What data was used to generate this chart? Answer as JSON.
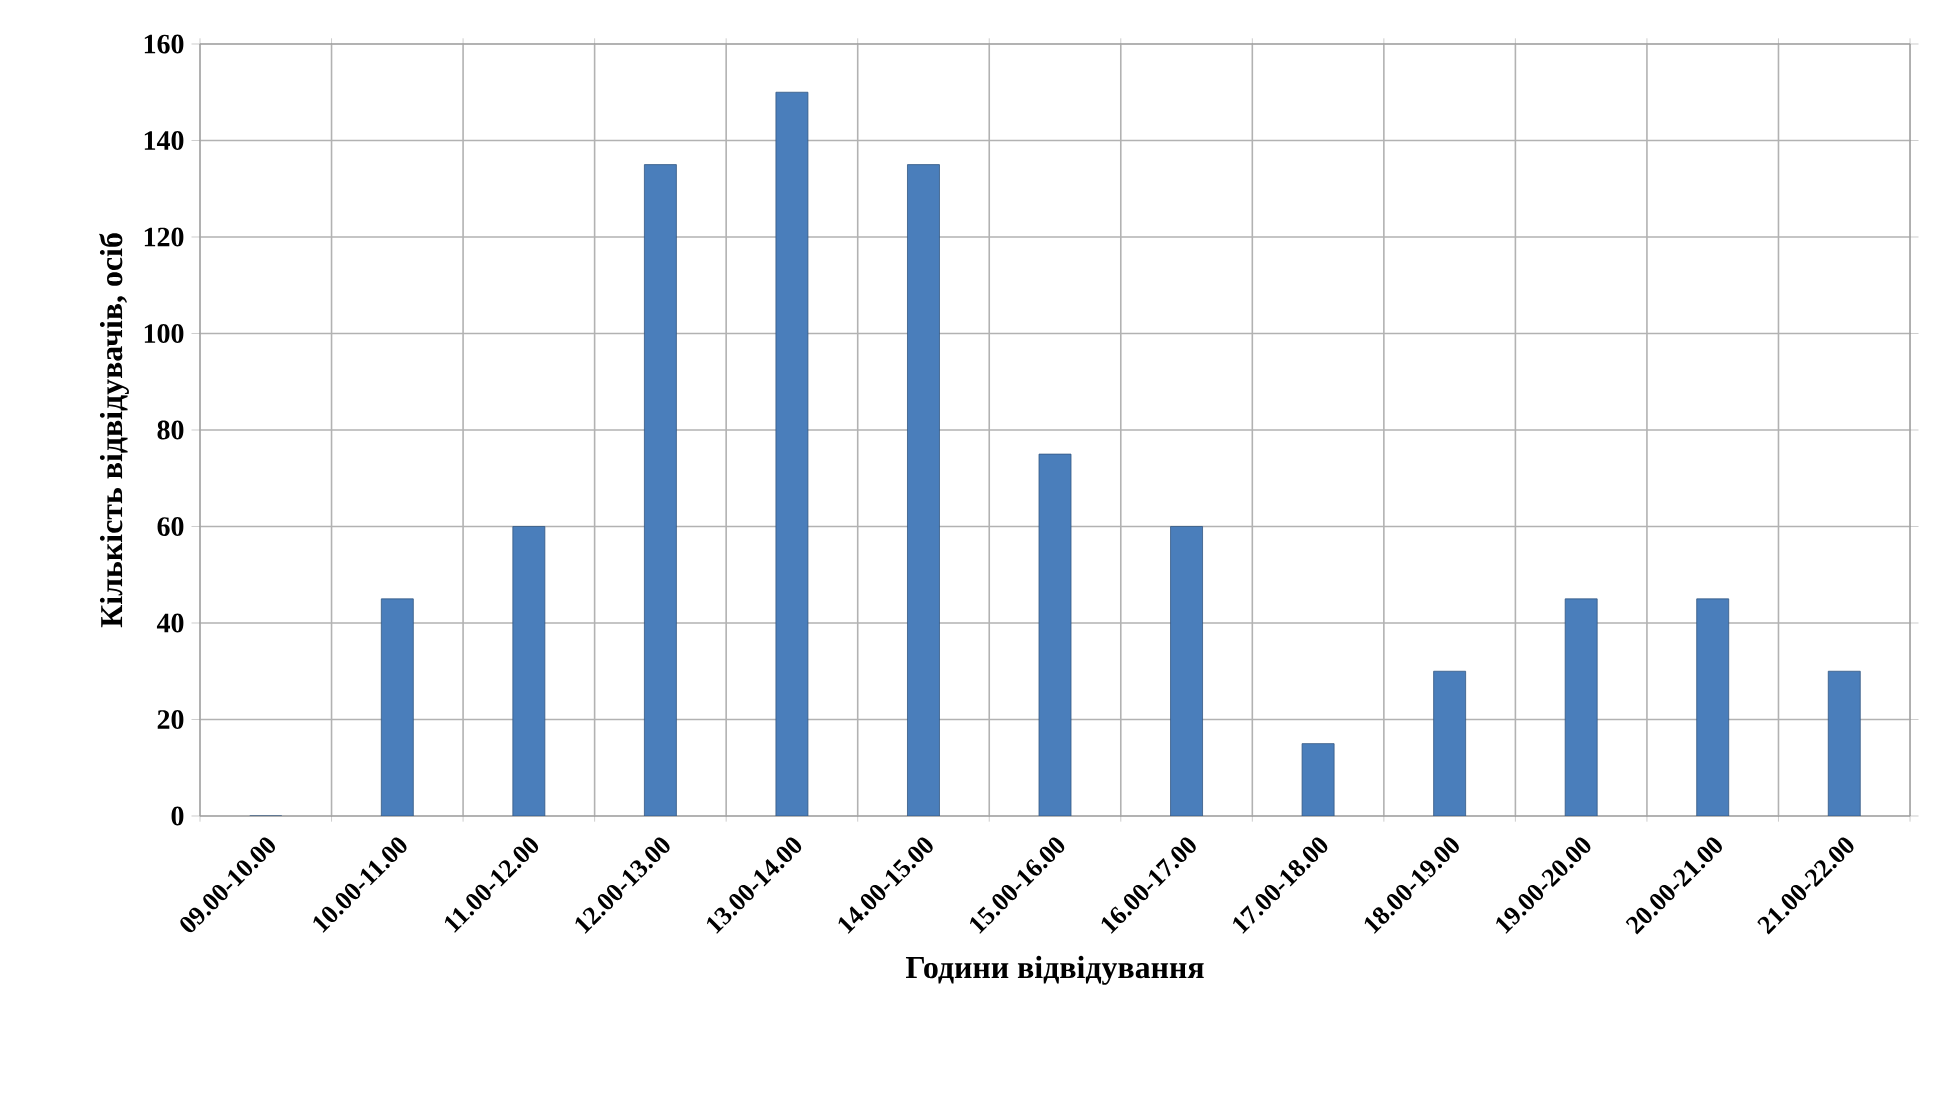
{
  "chart_data": {
    "type": "bar",
    "xlabel": "Години відвідування",
    "ylabel": "Кількість відвідувачів, осіб",
    "categories": [
      "09.00-10.00",
      "10.00-11.00",
      "11.00-12.00",
      "12.00-13.00",
      "13.00-14.00",
      "14.00-15.00",
      "15.00-16.00",
      "16.00-17.00",
      "17.00-18.00",
      "18.00-19.00",
      "19.00-20.00",
      "20.00-21.00",
      "21.00-22.00"
    ],
    "values": [
      0,
      45,
      60,
      135,
      150,
      135,
      75,
      60,
      15,
      30,
      45,
      45,
      30
    ],
    "color": "#4a7ebb",
    "ylim": [
      0,
      160
    ],
    "yticks": [
      0,
      20,
      40,
      60,
      80,
      100,
      120,
      140,
      160
    ],
    "grid": true
  }
}
